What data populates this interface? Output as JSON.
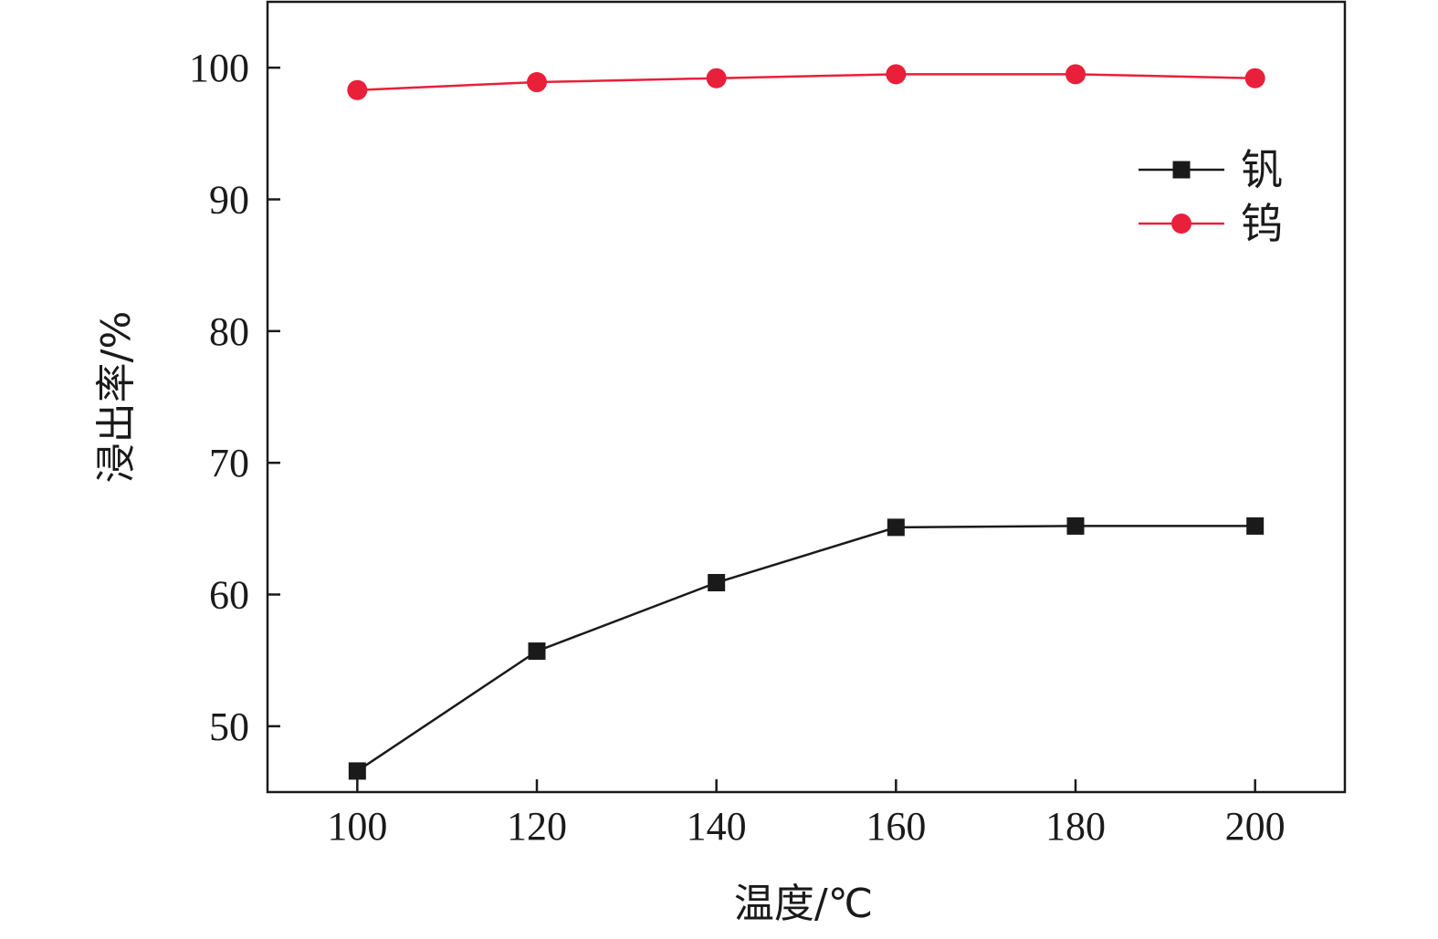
{
  "chart_data": {
    "type": "line",
    "title": "",
    "xlabel": "温度/℃",
    "ylabel": "浸出率/%",
    "x": [
      100,
      120,
      140,
      160,
      180,
      200
    ],
    "xlim": [
      90,
      210
    ],
    "ylim": [
      45,
      105
    ],
    "xticks": [
      "100",
      "120",
      "140",
      "160",
      "180",
      "200"
    ],
    "yticks": [
      "50",
      "60",
      "70",
      "80",
      "90",
      "100"
    ],
    "grid": false,
    "legend_position": "top-right",
    "series": [
      {
        "name": "钒",
        "marker": "square",
        "color": "#1a1a1a",
        "values": [
          46.6,
          55.7,
          60.9,
          65.1,
          65.2,
          65.2
        ]
      },
      {
        "name": "钨",
        "marker": "circle",
        "color": "#e8203a",
        "values": [
          98.3,
          98.9,
          99.2,
          99.5,
          99.5,
          99.2
        ]
      }
    ]
  }
}
